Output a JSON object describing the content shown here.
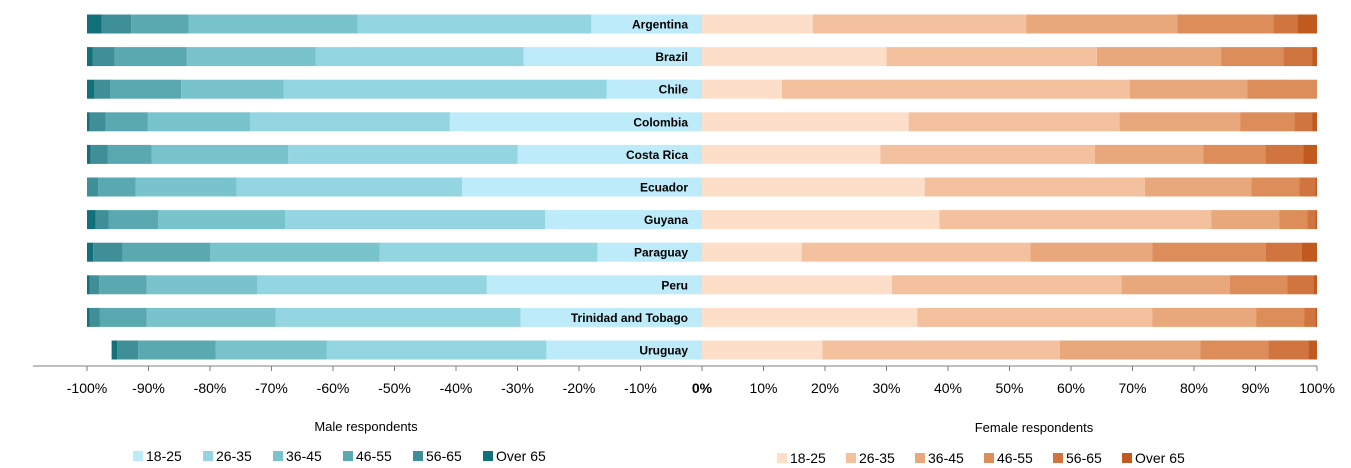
{
  "chart_data": {
    "type": "bar",
    "orientation": "horizontal",
    "stacked": true,
    "xlim": [
      -100,
      100
    ],
    "x_ticks": [
      "-100%",
      "-90%",
      "-80%",
      "-70%",
      "-60%",
      "-50%",
      "-40%",
      "-30%",
      "-20%",
      "-10%",
      "0%",
      "10%",
      "20%",
      "30%",
      "40%",
      "50%",
      "60%",
      "70%",
      "80%",
      "90%",
      "100%"
    ],
    "categories": [
      "Argentina",
      "Brazil",
      "Chile",
      "Colombia",
      "Costa Rica",
      "Ecuador",
      "Guyana",
      "Paraguay",
      "Peru",
      "Trinidad and Tobago",
      "Uruguay"
    ],
    "age_groups": [
      "18-25",
      "26-35",
      "36-45",
      "46-55",
      "56-65",
      "Over 65"
    ],
    "male": {
      "xlabel": "Male respondents",
      "colors": [
        "#BDEBF9",
        "#94D5E2",
        "#78C3CC",
        "#5AA9B1",
        "#3F8F98",
        "#12707A"
      ],
      "values": [
        [
          18.0,
          38.0,
          27.5,
          9.3,
          4.8,
          2.4
        ],
        [
          29.0,
          33.8,
          21.0,
          11.7,
          3.6,
          0.9
        ],
        [
          15.5,
          52.5,
          16.7,
          11.5,
          2.6,
          1.2
        ],
        [
          41.0,
          32.5,
          16.6,
          6.9,
          2.6,
          0.4
        ],
        [
          30.0,
          37.3,
          22.2,
          7.1,
          2.8,
          0.6
        ],
        [
          39.0,
          36.7,
          16.4,
          6.1,
          1.8,
          0.0
        ],
        [
          25.5,
          42.3,
          20.6,
          8.1,
          2.1,
          1.4
        ],
        [
          17.0,
          35.4,
          27.6,
          14.2,
          4.8,
          1.0
        ],
        [
          35.0,
          37.3,
          18.0,
          7.7,
          1.6,
          0.4
        ],
        [
          29.5,
          39.8,
          21.0,
          7.6,
          1.7,
          0.4
        ],
        [
          25.3,
          35.7,
          18.1,
          12.6,
          3.4,
          0.9
        ]
      ]
    },
    "female": {
      "xlabel": "Female respondents",
      "colors": [
        "#FDDFC9",
        "#F4C19F",
        "#E9A77C",
        "#DC8D5A",
        "#D07540",
        "#C05A1E"
      ],
      "values": [
        [
          18.0,
          34.7,
          24.6,
          15.6,
          3.9,
          3.2
        ],
        [
          30.0,
          34.2,
          20.2,
          10.1,
          4.7,
          0.8
        ],
        [
          13.0,
          56.6,
          19.1,
          11.3,
          0.0,
          0.0
        ],
        [
          33.6,
          34.3,
          19.6,
          8.8,
          2.9,
          0.8
        ],
        [
          29.0,
          34.9,
          17.6,
          10.1,
          6.2,
          2.2
        ],
        [
          36.2,
          35.8,
          17.3,
          7.8,
          2.6,
          0.3
        ],
        [
          38.6,
          44.2,
          11.1,
          4.5,
          1.3,
          0.3
        ],
        [
          16.2,
          37.2,
          19.8,
          18.5,
          5.8,
          2.5
        ],
        [
          30.9,
          37.3,
          17.6,
          9.4,
          4.2,
          0.6
        ],
        [
          35.0,
          38.2,
          16.9,
          7.8,
          1.8,
          0.3
        ],
        [
          19.6,
          38.6,
          22.8,
          11.1,
          6.5,
          1.4
        ]
      ]
    }
  }
}
